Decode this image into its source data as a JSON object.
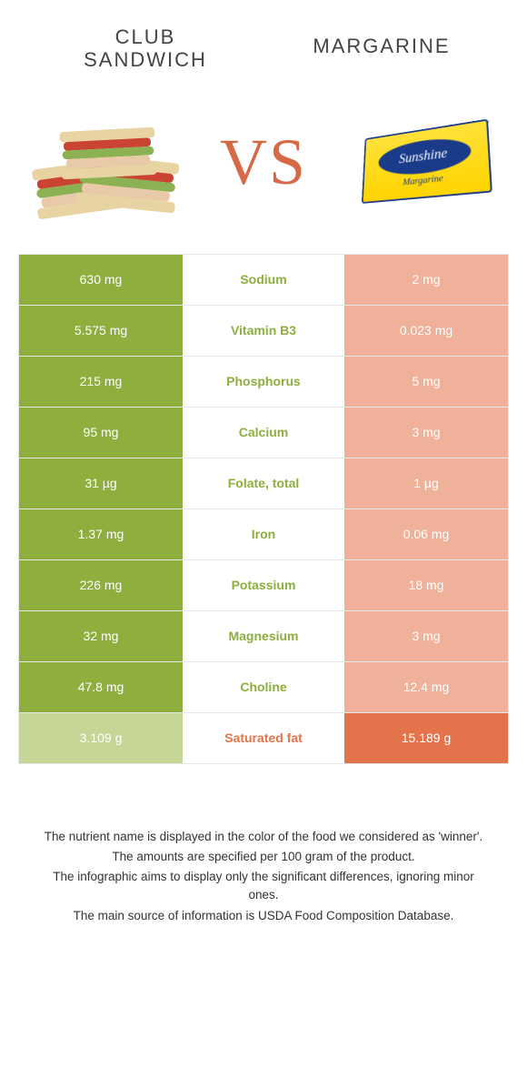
{
  "header": {
    "left_title_l1": "CLUB",
    "left_title_l2": "SANDWICH",
    "right_title": "MARGARINE"
  },
  "hero": {
    "vs": "VS"
  },
  "colors": {
    "left_win": "#8eae3e",
    "left_lose": "#c6d696",
    "right_win": "#e2734a",
    "right_lose": "#efb199",
    "label_green": "#8eae3e",
    "label_orange": "#e2734a"
  },
  "rows": [
    {
      "label": "Sodium",
      "left": "630 mg",
      "right": "2 mg",
      "winner": "left"
    },
    {
      "label": "Vitamin B3",
      "left": "5.575 mg",
      "right": "0.023 mg",
      "winner": "left"
    },
    {
      "label": "Phosphorus",
      "left": "215 mg",
      "right": "5 mg",
      "winner": "left"
    },
    {
      "label": "Calcium",
      "left": "95 mg",
      "right": "3 mg",
      "winner": "left"
    },
    {
      "label": "Folate, total",
      "left": "31 µg",
      "right": "1 µg",
      "winner": "left"
    },
    {
      "label": "Iron",
      "left": "1.37 mg",
      "right": "0.06 mg",
      "winner": "left"
    },
    {
      "label": "Potassium",
      "left": "226 mg",
      "right": "18 mg",
      "winner": "left"
    },
    {
      "label": "Magnesium",
      "left": "32 mg",
      "right": "3 mg",
      "winner": "left"
    },
    {
      "label": "Choline",
      "left": "47.8 mg",
      "right": "12.4 mg",
      "winner": "left"
    },
    {
      "label": "Saturated fat",
      "left": "3.109 g",
      "right": "15.189 g",
      "winner": "right"
    }
  ],
  "footnotes": [
    "The nutrient name is displayed in the color of the food we considered as 'winner'.",
    "The amounts are specified per 100 gram of the product.",
    "The infographic aims to display only the significant differences, ignoring minor ones.",
    "The main source of information is USDA Food Composition Database."
  ]
}
